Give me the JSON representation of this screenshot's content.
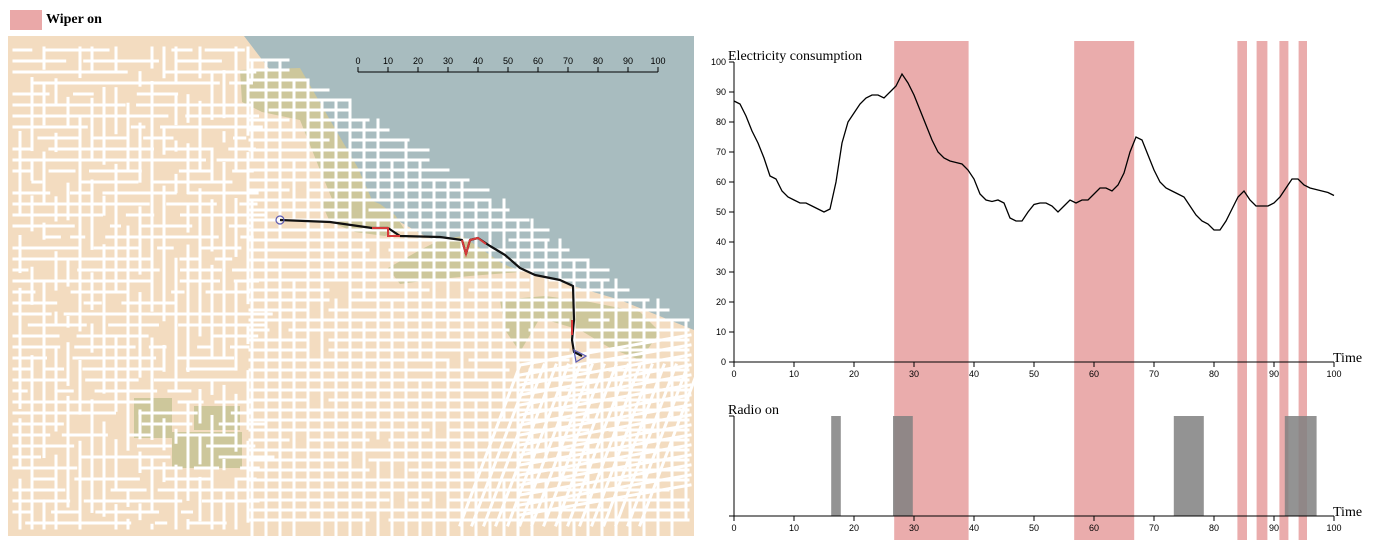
{
  "legend": {
    "label": "Wiper on",
    "color": "#eaa8a8"
  },
  "colors": {
    "land": "#f3dcc0",
    "water": "#a8bcbf",
    "park": "#cdc79b",
    "street": "#ffffff",
    "route": "#111111",
    "route_wiper": "#d63a3a",
    "start_marker": "#5a5ab4",
    "end_marker": "#5a5ab4",
    "line": "#000000",
    "radio_bar": "#808080",
    "wiper_band": "#e39090"
  },
  "map": {
    "scale_bar_ticks": [
      "0",
      "10",
      "20",
      "30",
      "40",
      "50",
      "60",
      "70",
      "80",
      "90",
      "100"
    ]
  },
  "chart_data": [
    {
      "type": "line",
      "title": "Electricity consumption",
      "xlabel": "Time",
      "ylabel": "",
      "xlim": [
        0,
        100
      ],
      "ylim": [
        0,
        100
      ],
      "xticks": [
        0,
        10,
        20,
        30,
        40,
        50,
        60,
        70,
        80,
        90,
        100
      ],
      "yticks": [
        0,
        10,
        20,
        30,
        40,
        50,
        60,
        70,
        80,
        90,
        100
      ],
      "x": [
        0,
        1,
        2,
        3,
        4,
        5,
        6,
        7,
        8,
        9,
        10,
        11,
        12,
        13,
        14,
        15,
        16,
        17,
        18,
        19,
        20,
        21,
        22,
        23,
        24,
        25,
        26,
        27,
        28,
        29,
        30,
        31,
        32,
        33,
        34,
        35,
        36,
        37,
        38,
        39,
        40,
        41,
        42,
        43,
        44,
        45,
        46,
        47,
        48,
        49,
        50,
        51,
        52,
        53,
        54,
        55,
        56,
        57,
        58,
        59,
        60,
        61,
        62,
        63,
        64,
        65,
        66,
        67,
        68,
        69,
        70,
        71,
        72,
        73,
        74,
        75,
        76,
        77,
        78,
        79,
        80,
        81,
        82,
        83,
        84,
        85,
        86,
        87,
        88,
        89,
        90,
        91,
        92,
        93,
        94,
        95,
        96,
        97,
        98,
        99,
        100
      ],
      "values": [
        87,
        86,
        82,
        77,
        73,
        68,
        62,
        61,
        57,
        55,
        54,
        53,
        53,
        52,
        51,
        50,
        51,
        60,
        73,
        80,
        83,
        86,
        88,
        89,
        89,
        88,
        90,
        92,
        96,
        93,
        89,
        84,
        79,
        74,
        70,
        68,
        67,
        66.5,
        66,
        64,
        61,
        56,
        54,
        53.5,
        54,
        53,
        48,
        47,
        47,
        50,
        52.5,
        53,
        53,
        52,
        50,
        52,
        54,
        53,
        54,
        54,
        56,
        58,
        58,
        57,
        59,
        63,
        70,
        75,
        74,
        69,
        64,
        60,
        58,
        57,
        56,
        55,
        52,
        49,
        47,
        46,
        44,
        44,
        47,
        51,
        55,
        57,
        54,
        52,
        52,
        52,
        53,
        55,
        58,
        61,
        61,
        59,
        58,
        57.5,
        57,
        56.5,
        55.5
      ]
    },
    {
      "type": "bar",
      "title": "Radio on",
      "xlabel": "Time",
      "xlim": [
        0,
        100
      ],
      "xticks": [
        0,
        10,
        20,
        30,
        40,
        50,
        60,
        70,
        80,
        90,
        100
      ],
      "intervals": [
        [
          16.2,
          17.8
        ],
        [
          26.5,
          29.8
        ],
        [
          73.3,
          78.3
        ],
        [
          91.8,
          97.1
        ]
      ]
    }
  ],
  "wiper_intervals": [
    [
      26.7,
      39.1
    ],
    [
      56.7,
      66.7
    ],
    [
      83.9,
      85.5
    ],
    [
      87.1,
      88.9
    ],
    [
      90.9,
      92.4
    ],
    [
      94.1,
      95.5
    ]
  ]
}
